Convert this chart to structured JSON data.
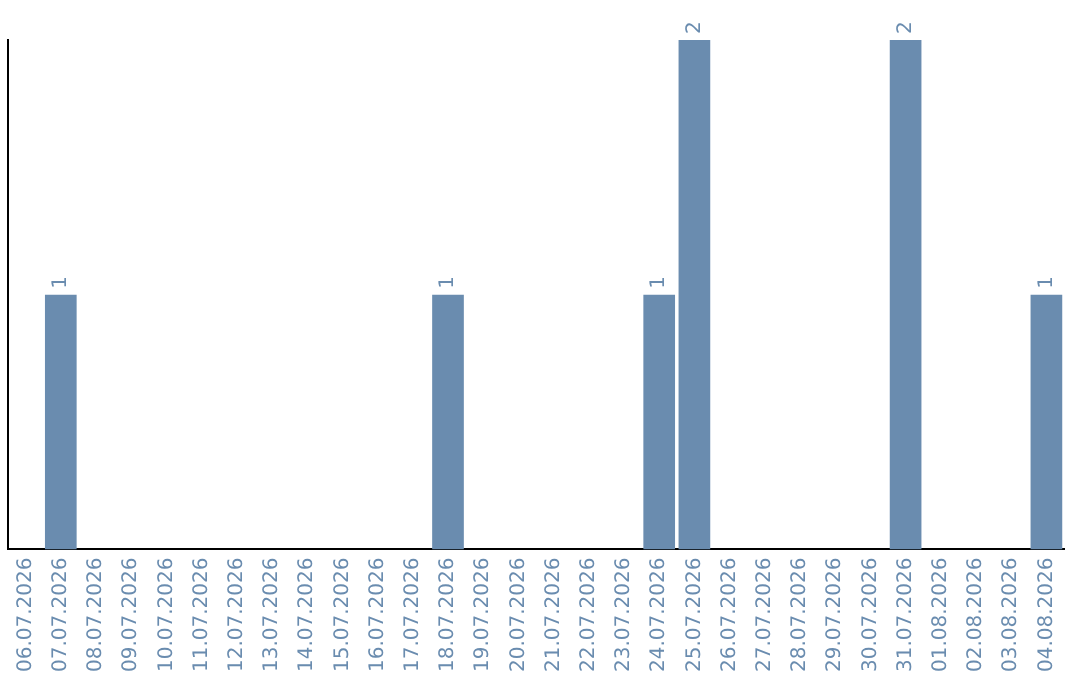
{
  "chart_data": {
    "type": "bar",
    "categories": [
      "06.07.2026",
      "07.07.2026",
      "08.07.2026",
      "09.07.2026",
      "10.07.2026",
      "11.07.2026",
      "12.07.2026",
      "13.07.2026",
      "14.07.2026",
      "15.07.2026",
      "16.07.2026",
      "17.07.2026",
      "18.07.2026",
      "19.07.2026",
      "20.07.2026",
      "21.07.2026",
      "22.07.2026",
      "23.07.2026",
      "24.07.2026",
      "25.07.2026",
      "26.07.2026",
      "27.07.2026",
      "28.07.2026",
      "29.07.2026",
      "30.07.2026",
      "31.07.2026",
      "01.08.2026",
      "02.08.2026",
      "03.08.2026",
      "04.08.2026"
    ],
    "values": [
      0,
      1,
      0,
      0,
      0,
      0,
      0,
      0,
      0,
      0,
      0,
      0,
      1,
      0,
      0,
      0,
      0,
      0,
      1,
      2,
      0,
      0,
      0,
      0,
      0,
      2,
      0,
      0,
      0,
      1
    ],
    "value_labels": [
      null,
      "1",
      null,
      null,
      null,
      null,
      null,
      null,
      null,
      null,
      null,
      null,
      "1",
      null,
      null,
      null,
      null,
      null,
      "1",
      "2",
      null,
      null,
      null,
      null,
      null,
      "2",
      null,
      null,
      null,
      "1"
    ],
    "color": "#6a8caf",
    "grid": false,
    "legend": false,
    "tick_labels": "x"
  }
}
